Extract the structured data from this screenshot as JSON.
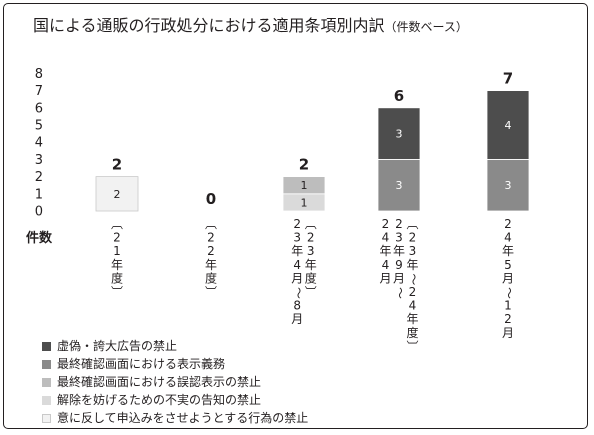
{
  "title": "国による通販の行政処分における適用条項別内訳",
  "subtitle": "（件数ベース）",
  "chart_data": {
    "type": "bar",
    "stacked": true,
    "ylabel": "件数",
    "ylim": [
      0,
      8
    ],
    "yticks": [
      "0",
      "1",
      "2",
      "3",
      "4",
      "5",
      "6",
      "7",
      "8"
    ],
    "categories": [
      [
        "〔21年度〕"
      ],
      [
        "〔22年度〕"
      ],
      [
        "23年4月〜8月",
        "〔23年度〕"
      ],
      [
        "24年4月",
        "23年9月〜",
        "〔23年〜24年度〕"
      ],
      [
        "24年5月〜12月"
      ]
    ],
    "series": [
      {
        "name": "意に反して申込みをさせようとする行為の禁止",
        "color": "#f2f2f2",
        "values": [
          2,
          0,
          0,
          0,
          0
        ]
      },
      {
        "name": "解除を妨げるための不実の告知の禁止",
        "color": "#dadada",
        "values": [
          0,
          0,
          1,
          0,
          0
        ]
      },
      {
        "name": "最終確認画面における誤認表示の禁止",
        "color": "#bdbdbd",
        "values": [
          0,
          0,
          1,
          0,
          0
        ]
      },
      {
        "name": "最終確認画面における表示義務",
        "color": "#8a8a8a",
        "values": [
          0,
          0,
          0,
          3,
          3
        ]
      },
      {
        "name": "虚偽・誇大広告の禁止",
        "color": "#4d4d4d",
        "values": [
          0,
          0,
          0,
          3,
          4
        ]
      }
    ],
    "totals": [
      2,
      0,
      2,
      6,
      7
    ],
    "legend": [
      {
        "name": "虚偽・誇大広告の禁止",
        "color": "#4d4d4d"
      },
      {
        "name": "最終確認画面における表示義務",
        "color": "#8a8a8a"
      },
      {
        "name": "最終確認画面における誤認表示の禁止",
        "color": "#bdbdbd"
      },
      {
        "name": "解除を妨げるための不実の告知の禁止",
        "color": "#dadada"
      },
      {
        "name": "意に反して申込みをさせようとする行為の禁止",
        "color": "#f2f2f2"
      }
    ],
    "legend_position": "bottom-left",
    "grid": false
  }
}
